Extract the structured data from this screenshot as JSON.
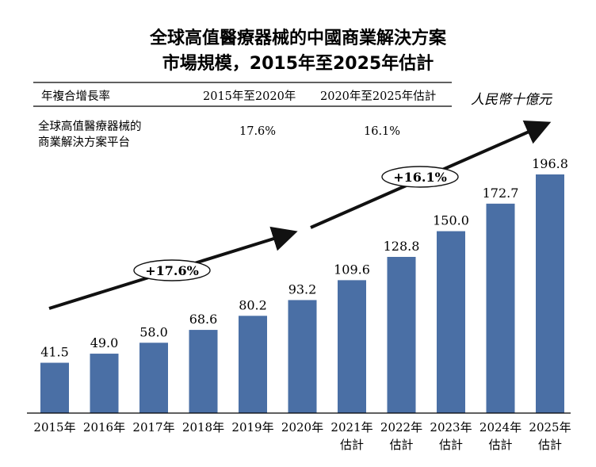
{
  "title": {
    "line1": "全球高值醫療器械的中國商業解決方案",
    "line2": "市場規模，2015年至2025年估計"
  },
  "unit": "人民幣十億元",
  "cagr_table": {
    "header_label": "年複合增長率",
    "period1": "2015年至2020年",
    "period2": "2020年至2025年估計",
    "row_label_line1": "全球高值醫療器械的",
    "row_label_line2": "商業解決方案平台",
    "value1": "17.6%",
    "value2": "16.1%"
  },
  "growth_labels": {
    "first": "+17.6%",
    "second": "+16.1%"
  },
  "chart_data": {
    "type": "bar",
    "categories": [
      "2015年",
      "2016年",
      "2017年",
      "2018年",
      "2019年",
      "2020年",
      "2021年估計",
      "2022年估計",
      "2023年估計",
      "2024年估計",
      "2025年估計"
    ],
    "category_lines": [
      [
        "2015年"
      ],
      [
        "2016年"
      ],
      [
        "2017年"
      ],
      [
        "2018年"
      ],
      [
        "2019年"
      ],
      [
        "2020年"
      ],
      [
        "2021年",
        "估計"
      ],
      [
        "2022年",
        "估計"
      ],
      [
        "2023年",
        "估計"
      ],
      [
        "2024年",
        "估計"
      ],
      [
        "2025年",
        "估計"
      ]
    ],
    "values": [
      41.5,
      49.0,
      58.0,
      68.6,
      80.2,
      93.2,
      109.6,
      128.8,
      150.0,
      172.7,
      196.8
    ],
    "value_labels": [
      "41.5",
      "49.0",
      "58.0",
      "68.6",
      "80.2",
      "93.2",
      "109.6",
      "128.8",
      "150.0",
      "172.7",
      "196.8"
    ],
    "ylim": [
      0,
      196.8
    ],
    "bar_color": "#4a6fa5",
    "grid": false,
    "legend": "none"
  }
}
